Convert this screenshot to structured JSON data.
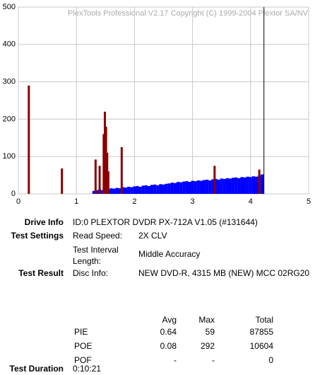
{
  "chart_data": {
    "type": "bar",
    "watermark": "PlexTools Professional V2.17 Copyright (C) 1999-2004 Plextor SA/NV",
    "xlim": [
      0,
      5
    ],
    "xticks": [
      0,
      1,
      2,
      3,
      4,
      5
    ],
    "ylim": [
      0,
      500
    ],
    "yticks": [
      0,
      100,
      200,
      300,
      400,
      500
    ],
    "grid": true,
    "end_line_x": 4.23,
    "series": [
      {
        "color": "#0000ff",
        "x": [
          1.3,
          1.35,
          1.4,
          1.45,
          1.5,
          1.55,
          1.6,
          1.65,
          1.7,
          1.75,
          1.8,
          1.85,
          1.9,
          1.95,
          2.0,
          2.05,
          2.1,
          2.15,
          2.2,
          2.25,
          2.3,
          2.35,
          2.4,
          2.45,
          2.5,
          2.55,
          2.6,
          2.65,
          2.7,
          2.75,
          2.8,
          2.85,
          2.9,
          2.95,
          3.0,
          3.05,
          3.1,
          3.15,
          3.2,
          3.25,
          3.3,
          3.35,
          3.4,
          3.45,
          3.5,
          3.55,
          3.6,
          3.65,
          3.7,
          3.75,
          3.8,
          3.85,
          3.9,
          3.95,
          4.0,
          4.05,
          4.1,
          4.15,
          4.2
        ],
        "values": [
          8,
          10,
          12,
          10,
          14,
          12,
          15,
          14,
          16,
          15,
          18,
          17,
          19,
          18,
          20,
          21,
          19,
          22,
          23,
          21,
          24,
          25,
          23,
          26,
          25,
          27,
          28,
          30,
          29,
          32,
          31,
          33,
          34,
          32,
          35,
          34,
          36,
          35,
          37,
          38,
          36,
          39,
          40,
          38,
          41,
          40,
          42,
          41,
          43,
          44,
          42,
          45,
          44,
          46,
          45,
          47,
          46,
          49,
          52
        ]
      },
      {
        "color": "#8b0000",
        "x": [
          0.18,
          0.75,
          1.33,
          1.4,
          1.47,
          1.49,
          1.51,
          1.53,
          1.55,
          1.78,
          3.38,
          4.15
        ],
        "values": [
          290,
          68,
          92,
          75,
          160,
          220,
          180,
          110,
          60,
          125,
          75,
          65
        ]
      }
    ]
  },
  "info": {
    "drive_info": {
      "label": "Drive Info",
      "value": "ID:0 PLEXTOR DVDR PX-712A V1.05 (#131644)"
    },
    "test_settings": {
      "label": "Test Settings",
      "read_speed": {
        "label": "Read Speed:",
        "value": "2X CLV"
      },
      "interval": {
        "label": "Test Interval Length:",
        "value": "Middle Accuracy"
      }
    },
    "test_result": {
      "label": "Test Result",
      "disc_info": {
        "label": "Disc Info:",
        "value": "NEW DVD-R, 4315 MB (NEW) MCC 02RG20"
      }
    },
    "table": {
      "header": [
        "Avg",
        "Max",
        "Total"
      ],
      "rows": [
        [
          "PIE",
          "0.64",
          "59",
          "87855"
        ],
        [
          "POE",
          "0.08",
          "292",
          "10604"
        ],
        [
          "POF",
          "-",
          "-",
          "0"
        ]
      ]
    },
    "test_duration": {
      "label": "Test Duration",
      "value": "0:10:21"
    }
  }
}
